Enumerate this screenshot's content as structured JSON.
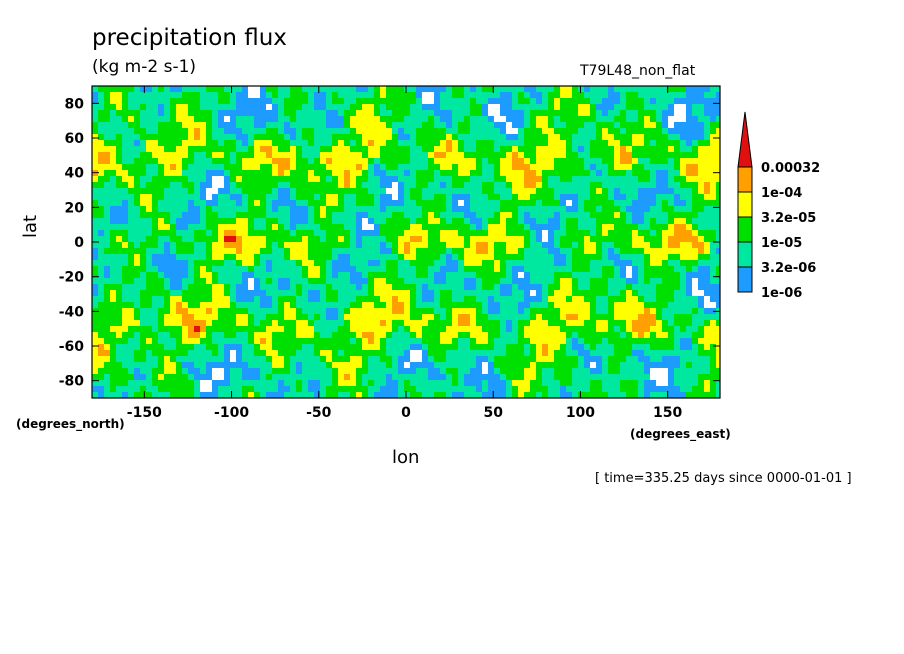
{
  "chart_data": {
    "type": "heatmap",
    "title": "precipitation flux",
    "units_label": "(kg m-2 s-1)",
    "run_label": "T79L48_non_flat",
    "xlabel": "lon",
    "ylabel": "lat",
    "x_unit_label": "(degrees_east)",
    "y_unit_label": "(degrees_north)",
    "time_note": "[ time=335.25 days since 0000-01-01 ]",
    "xlim": [
      -180,
      180
    ],
    "ylim": [
      -90,
      90
    ],
    "x_ticks": [
      -150,
      -100,
      -50,
      0,
      50,
      100,
      150
    ],
    "y_ticks": [
      80,
      60,
      40,
      20,
      0,
      -20,
      -40,
      -60,
      -80
    ],
    "x_tick_labels": [
      "-150",
      "-100",
      "-50",
      "0",
      "50",
      "100",
      "150"
    ],
    "y_tick_labels": [
      "80",
      "60",
      "40",
      "20",
      "0",
      "-20",
      "-40",
      "-60",
      "-80"
    ],
    "colorbar": {
      "levels": [
        1e-06,
        3.2e-06,
        1e-05,
        3.2e-05,
        0.0001,
        0.00032
      ],
      "labels": [
        "1e-06",
        "3.2e-06",
        "1e-05",
        "3.2e-05",
        "1e-04",
        "0.00032"
      ],
      "colors": [
        "#1e9bff",
        "#00e8a0",
        "#00e000",
        "#ffff00",
        "#ffa000",
        "#e01010"
      ],
      "below_color": "#ffffff"
    }
  }
}
